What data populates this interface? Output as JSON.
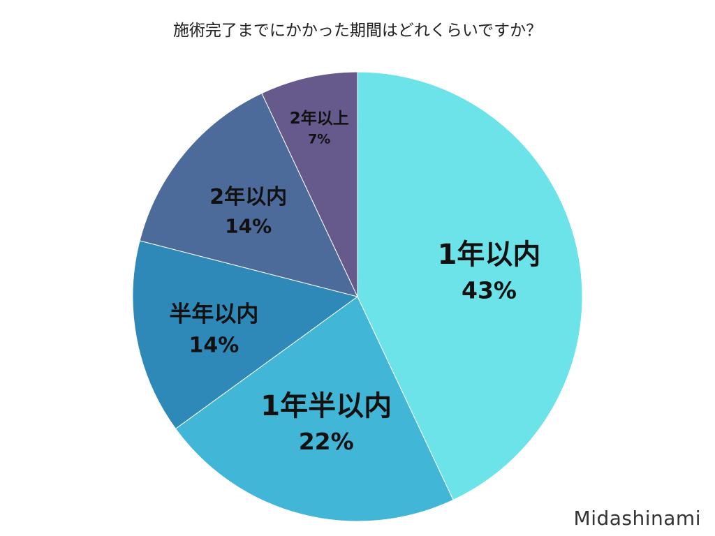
{
  "title": "施術完了までにかかった期間はどれくらいですか？",
  "watermark": "Midashinami",
  "chart_data": {
    "type": "pie",
    "title": "施術完了までにかかった期間はどれくらいですか？",
    "slices": [
      {
        "label": "1年以内",
        "value": 43,
        "value_label": "43%",
        "color": "#6ce3e8"
      },
      {
        "label": "1年半以内",
        "value": 22,
        "value_label": "22%",
        "color": "#42b6d6"
      },
      {
        "label": "半年以内",
        "value": 14,
        "value_label": "14%",
        "color": "#2e89b8"
      },
      {
        "label": "2年以内",
        "value": 14,
        "value_label": "14%",
        "color": "#4d6b9a"
      },
      {
        "label": "2年以上",
        "value": 7,
        "value_label": "7%",
        "color": "#665a8c"
      }
    ],
    "start": "12 o'clock",
    "direction": "clockwise",
    "legend": "none"
  }
}
